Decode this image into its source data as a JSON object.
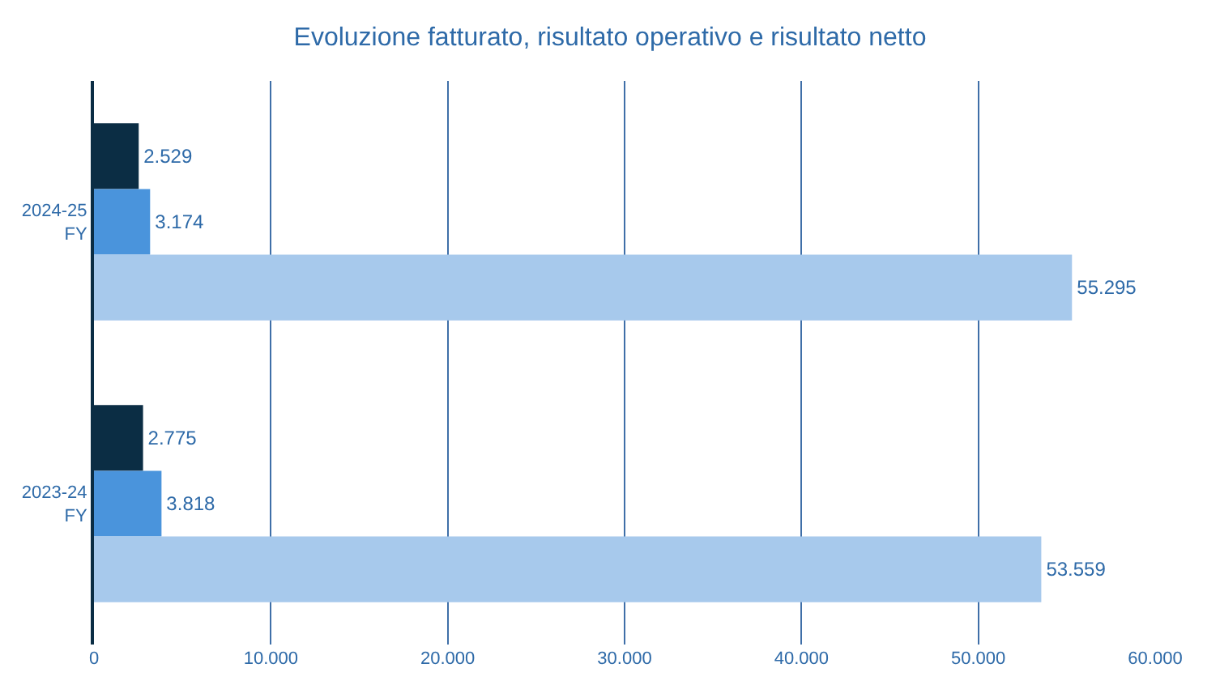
{
  "chart_data": {
    "type": "bar",
    "orientation": "horizontal",
    "title": "Evoluzione fatturato, risultato operativo e risultato netto",
    "categories": [
      "2024-25 FY",
      "2023-24 FY"
    ],
    "series": [
      {
        "color": "#0b2d44",
        "values": [
          2529,
          2775
        ],
        "value_labels": [
          "2.529",
          "2.775"
        ]
      },
      {
        "color": "#4a94dc",
        "values": [
          3174,
          3818
        ],
        "value_labels": [
          "3.174",
          "3.818"
        ]
      },
      {
        "color": "#a7c9ec",
        "values": [
          55295,
          53559
        ],
        "value_labels": [
          "55.295",
          "53.559"
        ]
      }
    ],
    "xlim": [
      0,
      60000
    ],
    "xticks": [
      0,
      {
        "value": 10000,
        "label": "10.000"
      },
      {
        "value": 20000,
        "label": "20.000"
      },
      {
        "value": 30000,
        "label": "30.000"
      },
      {
        "value": 40000,
        "label": "40.000"
      },
      {
        "value": 50000,
        "label": "50.000"
      },
      {
        "value": 60000,
        "label": "60.000"
      }
    ],
    "grid": "x"
  }
}
